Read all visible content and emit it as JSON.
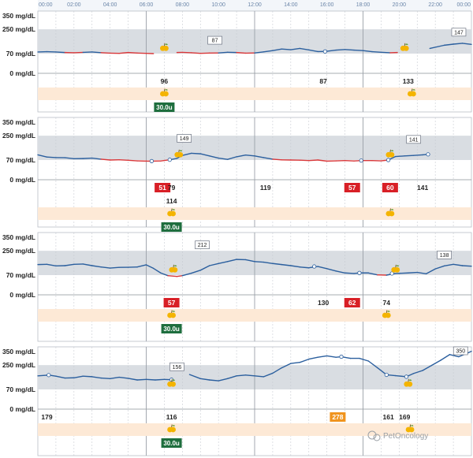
{
  "colors": {
    "target_band": "#d9dde2",
    "meal_band": "#fde9d6",
    "line_in_range": "#2b5f9e",
    "line_low": "#d9383a",
    "low_badge": "#d81f26",
    "high_badge": "#f0941e",
    "insulin_badge": "#1e6e3e",
    "apple_icon": "#f4b400",
    "header_text": "#6a85a8"
  },
  "timeline": {
    "ticks": [
      "00:00",
      "02:00",
      "04:00",
      "06:00",
      "08:00",
      "10:00",
      "12:00",
      "14:00",
      "16:00",
      "18:00",
      "20:00",
      "22:00",
      "00:00"
    ]
  },
  "y_labels": [
    "350 mg/dL",
    "250 mg/dL",
    "70 mg/dL",
    "0 mg/dL"
  ],
  "days": [
    {
      "callouts": [
        {
          "hour": 9.8,
          "value": 87
        },
        {
          "hour": 23.3,
          "value": 147
        }
      ],
      "readings": [
        {
          "hour": 7.0,
          "label": "96",
          "kind": "plain"
        },
        {
          "hour": 15.8,
          "label": "87",
          "kind": "plain"
        },
        {
          "hour": 20.5,
          "label": "133",
          "kind": "plain"
        }
      ],
      "meals_on_chart": [
        7.0,
        20.3
      ],
      "meals_in_band": [
        7.0,
        20.7
      ],
      "insulin": {
        "hour": 7.0,
        "label": "30.0u"
      },
      "markers": [
        15.9
      ],
      "curve": [
        [
          0,
          82
        ],
        [
          0.5,
          84
        ],
        [
          1,
          82
        ],
        [
          1.5,
          78
        ],
        [
          2,
          76
        ],
        [
          2.5,
          79
        ],
        [
          3,
          82
        ],
        [
          3.5,
          77
        ],
        [
          4,
          73
        ],
        [
          4.5,
          72
        ],
        [
          5,
          78
        ],
        [
          5.5,
          74
        ],
        [
          6,
          72
        ],
        [
          6.4,
          70
        ],
        [
          6.9,
          null
        ],
        [
          7.6,
          null
        ],
        [
          7.7,
          78
        ],
        [
          8,
          79
        ],
        [
          8.5,
          76
        ],
        [
          9,
          72
        ],
        [
          9.5,
          74
        ],
        [
          10,
          75
        ],
        [
          10.5,
          80
        ],
        [
          11,
          78
        ],
        [
          11.5,
          73
        ],
        [
          12,
          75
        ],
        [
          12.5,
          83
        ],
        [
          13,
          92
        ],
        [
          13.5,
          104
        ],
        [
          14,
          99
        ],
        [
          14.5,
          108
        ],
        [
          15,
          97
        ],
        [
          15.5,
          85
        ],
        [
          15.9,
          86
        ],
        [
          16.5,
          96
        ],
        [
          17,
          100
        ],
        [
          17.5,
          96
        ],
        [
          18,
          92
        ],
        [
          18.5,
          84
        ],
        [
          19,
          80
        ],
        [
          19.5,
          76
        ],
        [
          19.9,
          78
        ],
        [
          20.1,
          null
        ],
        [
          21.6,
          null
        ],
        [
          21.7,
          108
        ],
        [
          22.5,
          132
        ],
        [
          23,
          140
        ],
        [
          23.5,
          146
        ],
        [
          24,
          138
        ]
      ]
    },
    {
      "callouts": [
        {
          "hour": 8.1,
          "value": 149
        },
        {
          "hour": 20.8,
          "value": 141
        }
      ],
      "readings": [
        {
          "hour": 6.9,
          "label": "51",
          "kind": "low"
        },
        {
          "hour": 7.4,
          "label": "79",
          "kind": "plain"
        },
        {
          "hour": 7.4,
          "label": "114",
          "kind": "plain",
          "row": 2
        },
        {
          "hour": 12.6,
          "label": "119",
          "kind": "plain"
        },
        {
          "hour": 17.4,
          "label": "57",
          "kind": "low"
        },
        {
          "hour": 19.5,
          "label": "60",
          "kind": "low"
        },
        {
          "hour": 21.3,
          "label": "141",
          "kind": "plain"
        }
      ],
      "meals_on_chart": [
        7.8,
        19.5
      ],
      "meals_in_band": [
        7.4,
        19.5
      ],
      "insulin": {
        "hour": 7.4,
        "label": "30.0u"
      },
      "markers": [
        6.3,
        7.3,
        17.9,
        19.4,
        21.6
      ],
      "curve": [
        [
          0,
          108
        ],
        [
          0.5,
          92
        ],
        [
          1,
          88
        ],
        [
          1.5,
          87
        ],
        [
          2,
          80
        ],
        [
          2.5,
          81
        ],
        [
          3,
          84
        ],
        [
          3.5,
          76
        ],
        [
          4,
          70
        ],
        [
          4.5,
          72
        ],
        [
          5,
          68
        ],
        [
          5.5,
          64
        ],
        [
          6,
          62
        ],
        [
          6.3,
          62
        ],
        [
          6.8,
          63
        ],
        [
          7.3,
          72
        ],
        [
          7.7,
          82
        ],
        [
          8,
          104
        ],
        [
          8.5,
          120
        ],
        [
          9,
          116
        ],
        [
          9.5,
          100
        ],
        [
          10,
          84
        ],
        [
          10.5,
          75
        ],
        [
          11,
          94
        ],
        [
          11.5,
          107
        ],
        [
          12,
          100
        ],
        [
          12.5,
          88
        ],
        [
          13,
          76
        ],
        [
          13.5,
          71
        ],
        [
          14,
          70
        ],
        [
          14.5,
          69
        ],
        [
          15,
          66
        ],
        [
          15.5,
          70
        ],
        [
          16,
          62
        ],
        [
          16.5,
          64
        ],
        [
          17,
          66
        ],
        [
          17.5,
          63
        ],
        [
          17.9,
          66
        ],
        [
          18.5,
          66
        ],
        [
          19,
          64
        ],
        [
          19.4,
          70
        ],
        [
          19.8,
          96
        ],
        [
          20.3,
          100
        ],
        [
          20.8,
          104
        ],
        [
          21.3,
          108
        ],
        [
          21.6,
          112
        ]
      ]
    },
    {
      "callouts": [
        {
          "hour": 9.1,
          "value": 212
        },
        {
          "hour": 22.5,
          "value": 138
        }
      ],
      "readings": [
        {
          "hour": 7.4,
          "label": "57",
          "kind": "low"
        },
        {
          "hour": 15.8,
          "label": "130",
          "kind": "plain"
        },
        {
          "hour": 17.4,
          "label": "62",
          "kind": "low"
        },
        {
          "hour": 19.3,
          "label": "74",
          "kind": "plain"
        }
      ],
      "meals_on_chart": [
        7.5,
        19.8
      ],
      "meals_in_band": [
        7.4,
        19.3
      ],
      "insulin": {
        "hour": 7.4,
        "label": "30.0u"
      },
      "markers": [
        15.3,
        17.8,
        19.6
      ],
      "curve": [
        [
          0,
          148
        ],
        [
          0.5,
          150
        ],
        [
          1,
          138
        ],
        [
          1.5,
          140
        ],
        [
          2,
          150
        ],
        [
          2.5,
          152
        ],
        [
          3,
          140
        ],
        [
          3.5,
          130
        ],
        [
          4,
          122
        ],
        [
          4.5,
          127
        ],
        [
          5,
          128
        ],
        [
          5.5,
          130
        ],
        [
          6,
          146
        ],
        [
          6.4,
          120
        ],
        [
          6.8,
          86
        ],
        [
          7.2,
          66
        ],
        [
          7.7,
          60
        ],
        [
          8,
          66
        ],
        [
          8.5,
          84
        ],
        [
          9,
          106
        ],
        [
          9.5,
          140
        ],
        [
          10,
          156
        ],
        [
          10.5,
          170
        ],
        [
          11,
          186
        ],
        [
          11.5,
          184
        ],
        [
          12,
          170
        ],
        [
          12.5,
          166
        ],
        [
          13,
          156
        ],
        [
          13.5,
          148
        ],
        [
          14,
          140
        ],
        [
          14.5,
          130
        ],
        [
          15,
          124
        ],
        [
          15.5,
          134
        ],
        [
          16,
          118
        ],
        [
          16.5,
          100
        ],
        [
          17,
          86
        ],
        [
          17.5,
          82
        ],
        [
          17.8,
          86
        ],
        [
          18.3,
          86
        ],
        [
          18.8,
          72
        ],
        [
          19.3,
          70
        ],
        [
          19.8,
          82
        ],
        [
          20.5,
          86
        ],
        [
          21,
          90
        ],
        [
          21.5,
          80
        ],
        [
          22,
          116
        ],
        [
          22.5,
          138
        ],
        [
          23,
          150
        ],
        [
          23.5,
          140
        ],
        [
          24,
          136
        ]
      ]
    },
    {
      "callouts": [
        {
          "hour": 7.7,
          "value": 156
        },
        {
          "hour": 23.4,
          "value": 350
        }
      ],
      "readings": [
        {
          "hour": 0.5,
          "label": "179",
          "kind": "plain"
        },
        {
          "hour": 7.4,
          "label": "116",
          "kind": "plain"
        },
        {
          "hour": 16.6,
          "label": "278",
          "kind": "high"
        },
        {
          "hour": 19.4,
          "label": "161",
          "kind": "plain"
        },
        {
          "hour": 20.3,
          "label": "169",
          "kind": "plain"
        }
      ],
      "meals_on_chart": [
        7.4,
        20.5
      ],
      "meals_in_band": [
        7.4,
        20.6
      ],
      "insulin": {
        "hour": 7.4,
        "label": "30.0u"
      },
      "markers": [
        0.6,
        7.4,
        16.8,
        19.3,
        20.4
      ],
      "curve": [
        [
          0,
          170
        ],
        [
          0.6,
          176
        ],
        [
          1,
          168
        ],
        [
          1.5,
          154
        ],
        [
          2,
          156
        ],
        [
          2.5,
          168
        ],
        [
          3,
          164
        ],
        [
          3.5,
          154
        ],
        [
          4,
          150
        ],
        [
          4.5,
          160
        ],
        [
          5,
          152
        ],
        [
          5.5,
          140
        ],
        [
          6,
          144
        ],
        [
          6.5,
          140
        ],
        [
          7,
          144
        ],
        [
          7.4,
          142
        ],
        [
          7.6,
          null
        ],
        [
          8.3,
          null
        ],
        [
          8.4,
          180
        ],
        [
          9,
          150
        ],
        [
          9.5,
          140
        ],
        [
          10,
          134
        ],
        [
          10.5,
          150
        ],
        [
          11,
          170
        ],
        [
          11.5,
          176
        ],
        [
          12,
          170
        ],
        [
          12.5,
          164
        ],
        [
          13,
          190
        ],
        [
          13.5,
          230
        ],
        [
          14,
          262
        ],
        [
          14.5,
          270
        ],
        [
          15,
          294
        ],
        [
          15.5,
          308
        ],
        [
          16,
          318
        ],
        [
          16.5,
          308
        ],
        [
          16.8,
          312
        ],
        [
          17.3,
          300
        ],
        [
          17.8,
          300
        ],
        [
          18.3,
          280
        ],
        [
          18.8,
          230
        ],
        [
          19.3,
          178
        ],
        [
          19.8,
          172
        ],
        [
          20.4,
          164
        ],
        [
          20.8,
          188
        ],
        [
          21.3,
          210
        ],
        [
          21.8,
          248
        ],
        [
          22.3,
          286
        ],
        [
          22.8,
          328
        ],
        [
          23.3,
          312
        ],
        [
          23.8,
          340
        ],
        [
          24,
          352
        ]
      ]
    }
  ],
  "watermark": "PetOncology"
}
